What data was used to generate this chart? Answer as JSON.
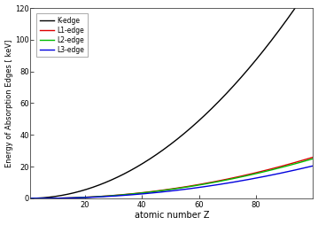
{
  "xlabel": "atomic number Z",
  "ylabel": "Energy of Absorption Edges [ keV]",
  "xlim": [
    1,
    100
  ],
  "ylim": [
    0,
    120
  ],
  "yticks": [
    0,
    20,
    40,
    60,
    80,
    100,
    120
  ],
  "xticks": [
    20,
    40,
    60,
    80
  ],
  "legend_labels": [
    "K-edge",
    "L1-edge",
    "L2-edge",
    "L3-edge"
  ],
  "legend_colors": [
    "#000000",
    "#dd0000",
    "#00bb00",
    "#0000dd"
  ],
  "background_color": "#ffffff",
  "line_width": 1.0,
  "aK": 0.01375,
  "bK": 0.3,
  "aL1": 0.002875,
  "bL1": 5.0,
  "aL2": 0.002769,
  "bL2": 5.0,
  "aL3": 0.002269,
  "bL3": 5.0
}
